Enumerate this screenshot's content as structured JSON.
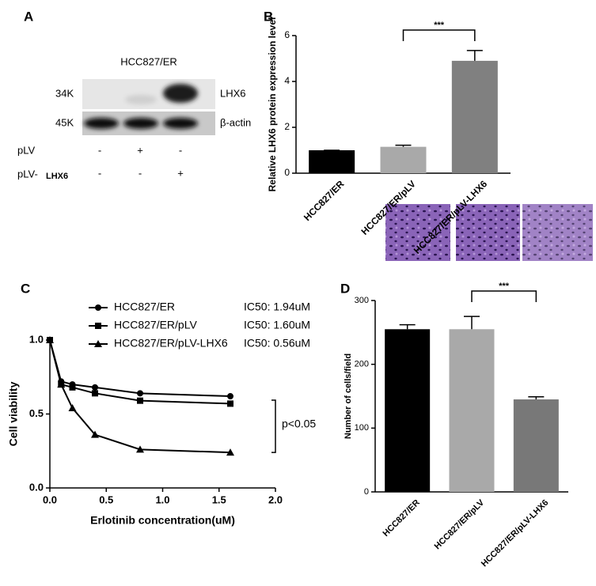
{
  "panel_labels": [
    "A",
    "B",
    "C",
    "D"
  ],
  "blot": {
    "title": "HCC827/ER",
    "rows": [
      {
        "mw": "34K",
        "label": "LHX6"
      },
      {
        "mw": "45K",
        "label": "β-actin"
      }
    ],
    "conditions": [
      {
        "name": "pLV",
        "signs": [
          "-",
          "+",
          "-"
        ]
      },
      {
        "name": "pLV-",
        "suffix": "LHX6",
        "signs": [
          "-",
          "-",
          "+"
        ]
      }
    ]
  },
  "chart_data": [
    {
      "type": "bar",
      "y_label": "Relative  LHX6 protein expression level",
      "categories": [
        "HCC827/ER",
        "HCC827/ER/pLV",
        "HCC827/ER/pLV-LHX6"
      ],
      "values": [
        1.0,
        1.15,
        4.9
      ],
      "errors": [
        0,
        0.07,
        0.45
      ],
      "colors": [
        "#000000",
        "#a9a9a9",
        "#808080"
      ],
      "ylim": [
        0,
        6
      ],
      "yticks": [
        0,
        2,
        4,
        6
      ],
      "annotation": "***"
    },
    {
      "type": "line",
      "x_label": "Erlotinib concentration(uM)",
      "y_label": "Cell viability",
      "x": [
        0,
        0.1,
        0.2,
        0.4,
        0.8,
        1.6
      ],
      "series": [
        {
          "name": "HCC827/ER",
          "annotation": "IC50: 1.94uM",
          "marker": "circle",
          "color": "#000000",
          "values": [
            1.0,
            0.72,
            0.7,
            0.68,
            0.64,
            0.62
          ]
        },
        {
          "name": "HCC827/ER/pLV",
          "annotation": "IC50: 1.60uM",
          "marker": "square",
          "color": "#000000",
          "values": [
            1.0,
            0.7,
            0.68,
            0.64,
            0.59,
            0.57
          ]
        },
        {
          "name": "HCC827/ER/pLV-LHX6",
          "annotation": "IC50:  0.56uM",
          "marker": "triangle",
          "color": "#000000",
          "values": [
            1.0,
            0.7,
            0.54,
            0.36,
            0.26,
            0.24
          ]
        }
      ],
      "xlim": [
        0,
        2
      ],
      "xticks": [
        {
          "value": 0,
          "label": "0.0"
        },
        {
          "value": 0.5,
          "label": "0.5"
        },
        {
          "value": 1,
          "label": "1.0"
        },
        {
          "value": 1.5,
          "label": "1.5"
        },
        {
          "value": 2,
          "label": "2.0"
        }
      ],
      "ylim": [
        0,
        1
      ],
      "yticks": [
        {
          "value": 0,
          "label": "0.0"
        },
        {
          "value": 0.5,
          "label": "0.5"
        },
        {
          "value": 1,
          "label": "1.0"
        }
      ],
      "annotation": "p<0.05"
    },
    {
      "type": "bar",
      "y_label": "Number of cells/field",
      "categories": [
        "HCC827/ER",
        "HCC827/ER/pLV",
        "HCC827/ER/pLV-LHX6"
      ],
      "values": [
        255,
        255,
        145
      ],
      "errors": [
        7,
        20,
        4
      ],
      "colors": [
        "#000000",
        "#a9a9a9",
        "#787878"
      ],
      "ylim": [
        0,
        300
      ],
      "yticks": [
        0,
        100,
        200,
        300
      ],
      "annotation": "***"
    }
  ]
}
